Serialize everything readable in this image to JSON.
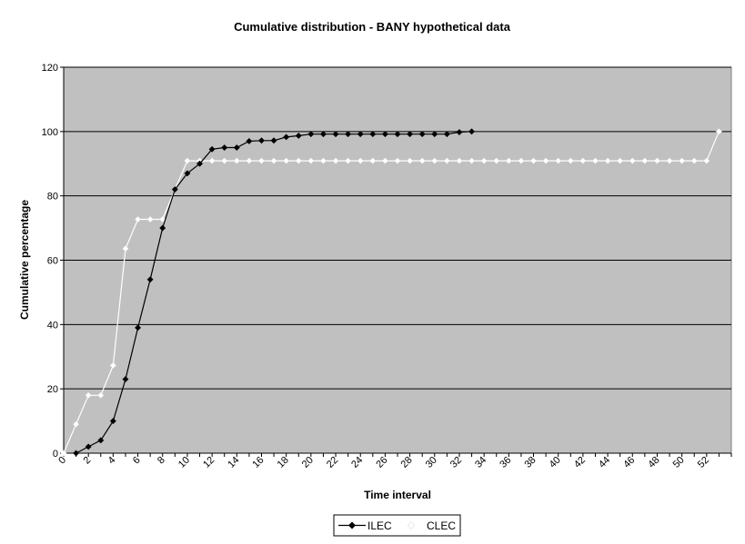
{
  "chart_data": {
    "type": "line",
    "title": "Cumulative distribution - BANY hypothetical data",
    "xlabel": "Time interval",
    "ylabel": "Cumulative percentage",
    "ylim": [
      0,
      120
    ],
    "yticks": [
      0,
      20,
      40,
      60,
      80,
      100,
      120
    ],
    "xlim": [
      0,
      54
    ],
    "xtick_labels": [
      "0",
      "2",
      "4",
      "6",
      "8",
      "10",
      "12",
      "14",
      "16",
      "18",
      "20",
      "22",
      "24",
      "26",
      "28",
      "30",
      "32",
      "34",
      "36",
      "38",
      "40",
      "42",
      "44",
      "46",
      "48",
      "50",
      "52"
    ],
    "grid": "horizontal",
    "legend": "bottom",
    "plot_background": "#c0c0c0",
    "series": [
      {
        "name": "ILEC",
        "color": "#000000",
        "marker": "diamond",
        "x": [
          1,
          2,
          3,
          4,
          5,
          6,
          7,
          8,
          9,
          10,
          11,
          12,
          13,
          14,
          15,
          16,
          17,
          18,
          19,
          20,
          21,
          22,
          23,
          24,
          25,
          26,
          27,
          28,
          29,
          30,
          31,
          32,
          33
        ],
        "values": [
          0,
          2,
          4,
          10,
          23,
          39,
          54,
          70,
          82,
          87,
          90,
          94.5,
          95,
          95,
          97,
          97.2,
          97.2,
          98.3,
          98.7,
          99.2,
          99.2,
          99.2,
          99.2,
          99.2,
          99.2,
          99.2,
          99.2,
          99.2,
          99.2,
          99.2,
          99.2,
          99.8,
          100
        ]
      },
      {
        "name": "CLEC",
        "color": "#ffffff",
        "marker": "diamond",
        "x": [
          0,
          1,
          2,
          3,
          4,
          5,
          6,
          7,
          8,
          9,
          10,
          11,
          12,
          13,
          14,
          15,
          16,
          17,
          18,
          19,
          20,
          21,
          22,
          23,
          24,
          25,
          26,
          27,
          28,
          29,
          30,
          31,
          32,
          33,
          34,
          35,
          36,
          37,
          38,
          39,
          40,
          41,
          42,
          43,
          44,
          45,
          46,
          47,
          48,
          49,
          50,
          51,
          52,
          53
        ],
        "values": [
          0,
          9,
          18,
          18,
          27.3,
          63.6,
          72.7,
          72.7,
          72.7,
          82,
          90.9,
          90.9,
          90.9,
          90.9,
          90.9,
          90.9,
          90.9,
          90.9,
          90.9,
          90.9,
          90.9,
          90.9,
          90.9,
          90.9,
          90.9,
          90.9,
          90.9,
          90.9,
          90.9,
          90.9,
          90.9,
          90.9,
          90.9,
          90.9,
          90.9,
          90.9,
          90.9,
          90.9,
          90.9,
          90.9,
          90.9,
          90.9,
          90.9,
          90.9,
          90.9,
          90.9,
          90.9,
          90.9,
          90.9,
          90.9,
          90.9,
          90.9,
          90.9,
          100
        ]
      }
    ]
  }
}
